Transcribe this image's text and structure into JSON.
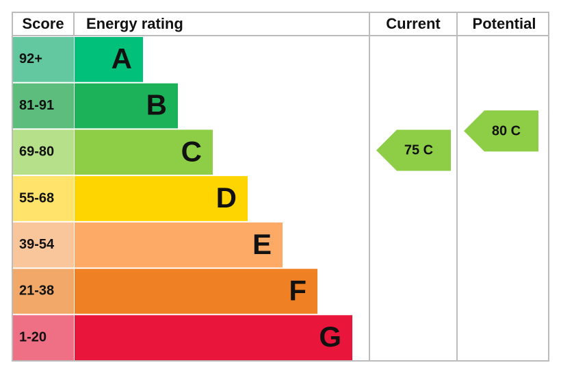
{
  "chart_data": {
    "type": "epc",
    "headers": [
      "Score",
      "Energy rating",
      "Current",
      "Potential"
    ],
    "bands": [
      {
        "score": "92+",
        "letter": "A",
        "color": "#00c07a",
        "score_color": "#63c8a0"
      },
      {
        "score": "81-91",
        "letter": "B",
        "color": "#1cb25a",
        "score_color": "#5dbd7c"
      },
      {
        "score": "69-80",
        "letter": "C",
        "color": "#8dce46",
        "score_color": "#b7e08a"
      },
      {
        "score": "55-68",
        "letter": "D",
        "color": "#ffd500",
        "score_color": "#ffe36b"
      },
      {
        "score": "39-54",
        "letter": "E",
        "color": "#fcaa65",
        "score_color": "#f9c59b"
      },
      {
        "score": "21-38",
        "letter": "F",
        "color": "#ef8023",
        "score_color": "#f2a868"
      },
      {
        "score": "1-20",
        "letter": "G",
        "color": "#e9153b",
        "score_color": "#ef6f85"
      }
    ],
    "current": {
      "value": 75,
      "label": "75 C",
      "color": "#8dce46"
    },
    "potential": {
      "value": 80,
      "label": "80 C",
      "color": "#8dce46"
    }
  }
}
